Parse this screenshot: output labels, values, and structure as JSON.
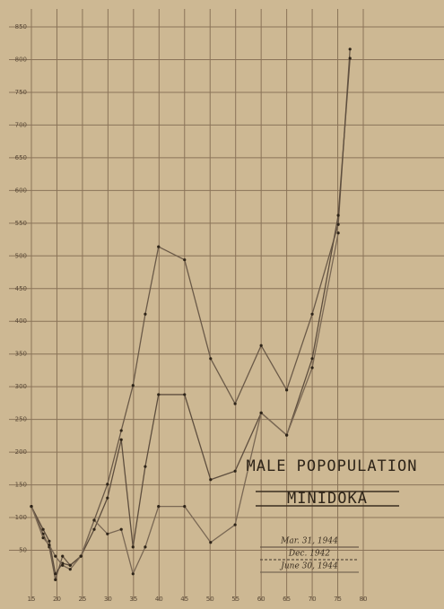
{
  "chart_data": {
    "type": "line",
    "title": [
      "MALE POPOPULATION",
      "MINIDOKA"
    ],
    "x": [
      15,
      17.3,
      18.5,
      19.7,
      21.1,
      22.6,
      24.7,
      27.3,
      29.9,
      32.6,
      34.9,
      37.3,
      39.9,
      45,
      50.1,
      54.9,
      60,
      65,
      70,
      75.1,
      77.4
    ],
    "series": [
      {
        "name": "Mar. 31, 1944",
        "color": "#6b5a48",
        "values": [
          117,
          75,
          55,
          5,
          41,
          27,
          41,
          96,
          151,
          233,
          302,
          411,
          514,
          494,
          343,
          274,
          363,
          295,
          411,
          548,
          816
        ]
      },
      {
        "name": "Dec. 1942",
        "color": "#5e4e3e",
        "values": [
          117,
          82,
          64,
          14,
          30,
          27,
          41,
          82,
          130,
          219,
          55,
          178,
          288,
          288,
          158,
          171,
          260,
          226,
          343,
          562,
          802
        ]
      },
      {
        "name": "June 30, 1944",
        "color": "#7a6854",
        "values": [
          117,
          69,
          58,
          41,
          27,
          21,
          41,
          96,
          75,
          82,
          14,
          55,
          117,
          117,
          62,
          89,
          260,
          226,
          329,
          535,
          null
        ]
      }
    ],
    "xlim": [
      15,
      80
    ],
    "xticks": [
      15,
      20,
      25,
      30,
      35,
      40,
      45,
      50,
      55,
      60,
      65,
      70,
      75,
      80
    ],
    "ylim": [
      0,
      850
    ],
    "yticks": [
      50,
      100,
      150,
      200,
      250,
      300,
      350,
      400,
      450,
      500,
      550,
      600,
      650,
      700,
      750,
      800,
      850
    ],
    "grid": true
  }
}
